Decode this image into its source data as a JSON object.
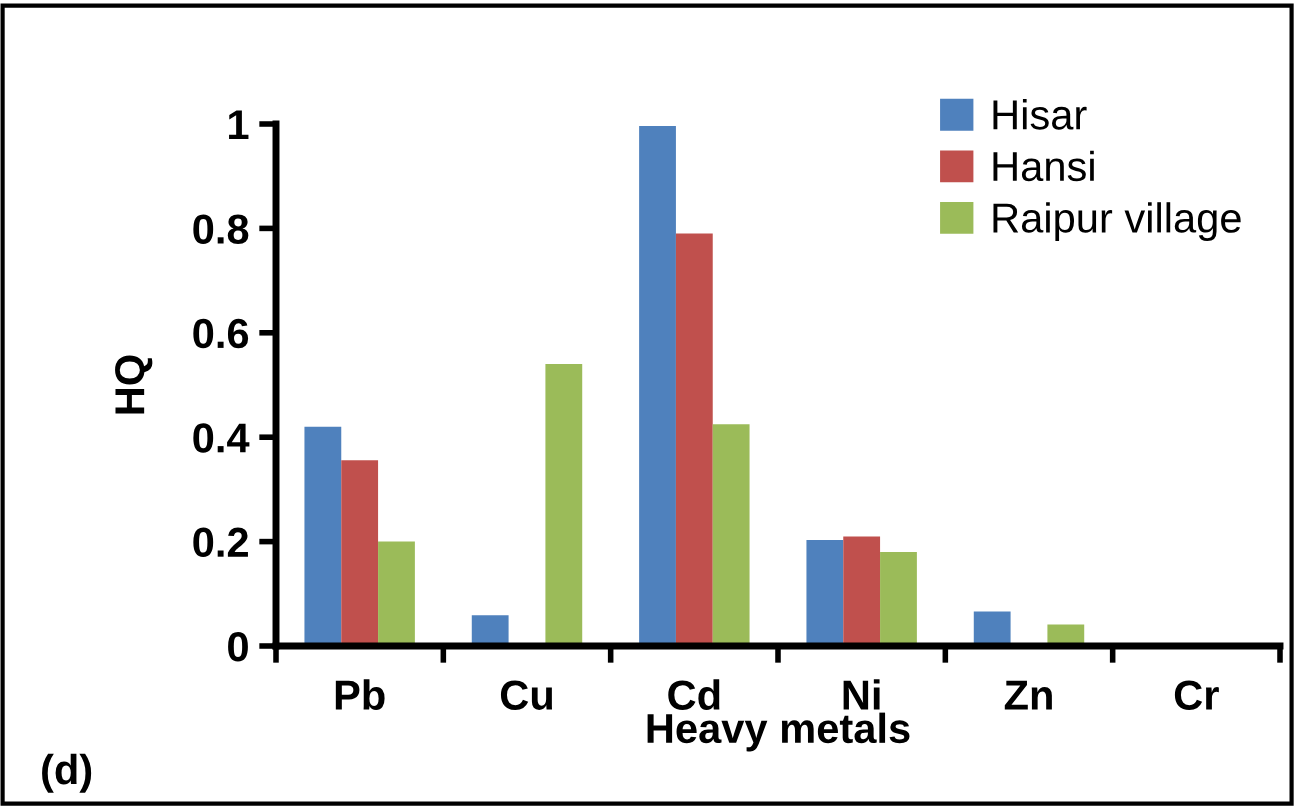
{
  "chart_data": {
    "type": "bar",
    "xlabel": "Heavy metals",
    "ylabel": "HQ",
    "categories": [
      "Pb",
      "Cu",
      "Cd",
      "Ni",
      "Zn",
      "Cr"
    ],
    "series": [
      {
        "name": "Hisar",
        "color": "#4f81bd",
        "values": [
          0.42,
          0.059,
          0.996,
          0.203,
          0.066,
          0
        ]
      },
      {
        "name": "Hansi",
        "color": "#c0504d",
        "values": [
          0.356,
          0.005,
          0.79,
          0.21,
          0,
          0
        ]
      },
      {
        "name": "Raipur village",
        "color": "#9bbb59",
        "values": [
          0.2,
          0.54,
          0.425,
          0.18,
          0.041,
          0
        ]
      }
    ],
    "ylim": [
      0,
      1
    ],
    "yticks": [
      0,
      0.2,
      0.4,
      0.6,
      0.8,
      1
    ],
    "grid": false,
    "legend": "top right",
    "annotations": [
      "(d)"
    ]
  }
}
